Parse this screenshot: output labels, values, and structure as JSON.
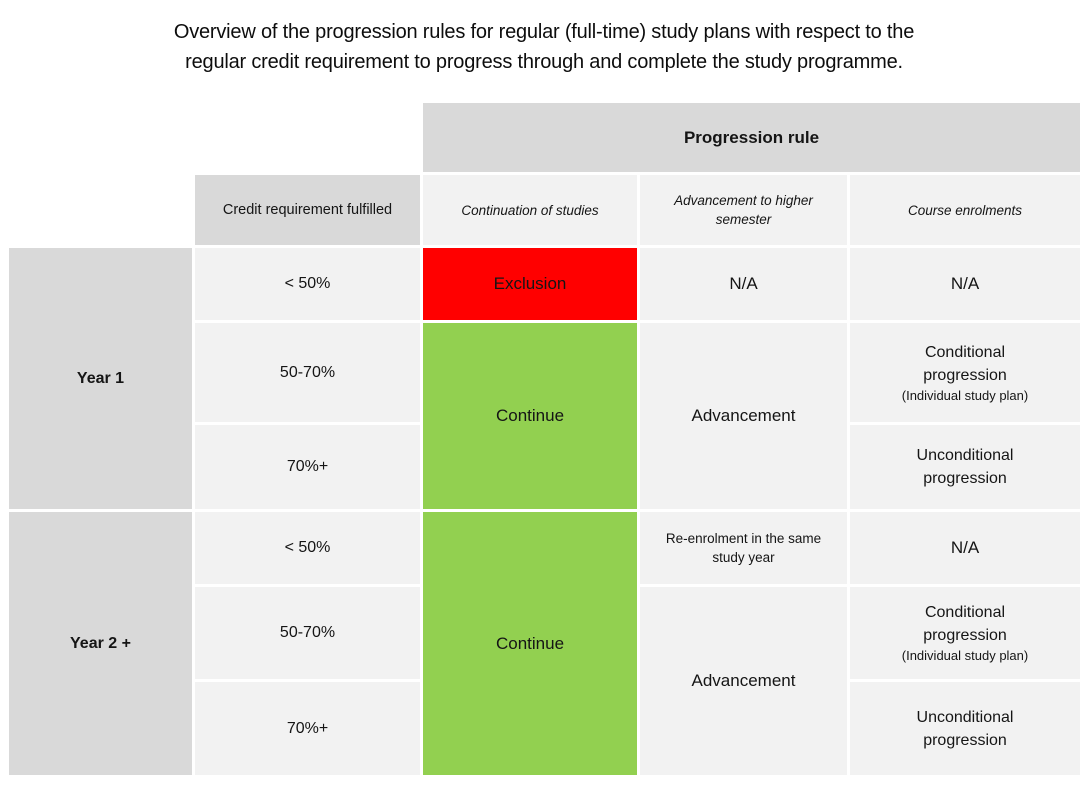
{
  "title": {
    "line1": "Overview of the progression rules for regular (full-time) study plans with respect to the",
    "line2": "regular credit requirement to progress through and complete the study programme."
  },
  "colors": {
    "exclusion-bg": "#FF0000",
    "continue-bg": "#92D050",
    "header-bg": "#D9D9D9",
    "cell-bg": "#F2F2F2"
  },
  "table": {
    "progression_rule_header": "Progression rule",
    "credit_requirement_header": "Credit requirement fulfilled",
    "rule_columns": [
      "Continuation of studies",
      "Advancement to higher semester",
      "Course enrolments"
    ],
    "year1": {
      "label": "Year 1",
      "rows": [
        {
          "credit": "< 50%",
          "continuation": "Exclusion",
          "advancement": "N/A",
          "course": "N/A"
        },
        {
          "credit": "50-70%",
          "continuation": "Continue",
          "advancement": "Advancement",
          "course": "Conditional progression",
          "course_note": "(Individual study plan)"
        },
        {
          "credit": "70%+",
          "course": "Unconditional progression"
        }
      ]
    },
    "year2": {
      "label": "Year 2 +",
      "rows": [
        {
          "credit": "< 50%",
          "continuation": "Continue",
          "advancement": "Re-enrolment in the same study year",
          "course": "N/A"
        },
        {
          "credit": "50-70%",
          "advancement": "Advancement",
          "course": "Conditional progression",
          "course_note": "(Individual study plan)"
        },
        {
          "credit": "70%+",
          "course": "Unconditional progression"
        }
      ]
    }
  }
}
